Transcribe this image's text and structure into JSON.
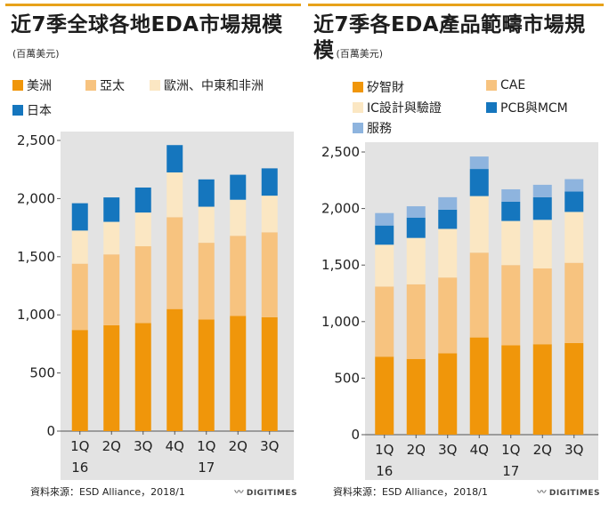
{
  "chart_data": [
    {
      "type": "stacked-bar",
      "title": "近7季全球各地EDA市場規模",
      "unit_note": "(百萬美元)",
      "categories": [
        "1Q\n16",
        "2Q",
        "3Q",
        "4Q",
        "1Q\n17",
        "2Q",
        "3Q"
      ],
      "series": [
        {
          "name": "美洲",
          "color": "#f0960a",
          "values": [
            870,
            910,
            930,
            1050,
            960,
            990,
            980
          ]
        },
        {
          "name": "亞太",
          "color": "#f7c37f",
          "values": [
            570,
            610,
            660,
            790,
            660,
            690,
            730
          ]
        },
        {
          "name": "歐洲、中東和非洲",
          "color": "#fbe7c3",
          "values": [
            285,
            280,
            290,
            385,
            310,
            310,
            315
          ]
        },
        {
          "name": "日本",
          "color": "#1576be",
          "values": [
            235,
            210,
            215,
            235,
            235,
            215,
            235
          ]
        }
      ],
      "ylim": [
        0,
        2500
      ],
      "yticks": [
        0,
        500,
        1000,
        1500,
        2000,
        2500
      ],
      "ytick_labels": [
        "0",
        "500",
        "1,000",
        "1,500",
        "2,000",
        "2,500"
      ],
      "grid": false,
      "legend_position": "top",
      "source": "資料來源：ESD Alliance，2018/1",
      "brand": "DIGITIMES"
    },
    {
      "type": "stacked-bar",
      "title": "近7季各EDA產品範疇市場規模",
      "unit_note": "(百萬美元)",
      "categories": [
        "1Q\n16",
        "2Q",
        "3Q",
        "4Q",
        "1Q\n17",
        "2Q",
        "3Q"
      ],
      "series": [
        {
          "name": "矽智財",
          "color": "#f0960a",
          "values": [
            690,
            670,
            720,
            860,
            790,
            800,
            810
          ]
        },
        {
          "name": "CAE",
          "color": "#f7c37f",
          "values": [
            620,
            660,
            670,
            750,
            710,
            670,
            710
          ]
        },
        {
          "name": "IC設計與驗證",
          "color": "#fbe7c3",
          "values": [
            370,
            410,
            430,
            500,
            390,
            430,
            450
          ]
        },
        {
          "name": "PCB與MCM",
          "color": "#1576be",
          "values": [
            170,
            180,
            170,
            240,
            170,
            200,
            180
          ]
        },
        {
          "name": "服務",
          "color": "#8eb4de",
          "values": [
            110,
            100,
            110,
            110,
            110,
            110,
            110
          ]
        }
      ],
      "ylim": [
        0,
        2500
      ],
      "yticks": [
        0,
        500,
        1000,
        1500,
        2000,
        2500
      ],
      "ytick_labels": [
        "0",
        "500",
        "1,000",
        "1,500",
        "2,000",
        "2,500"
      ],
      "grid": false,
      "legend_position": "top",
      "source": "資料來源：ESD Alliance，2018/1",
      "brand": "DIGITIMES"
    }
  ]
}
